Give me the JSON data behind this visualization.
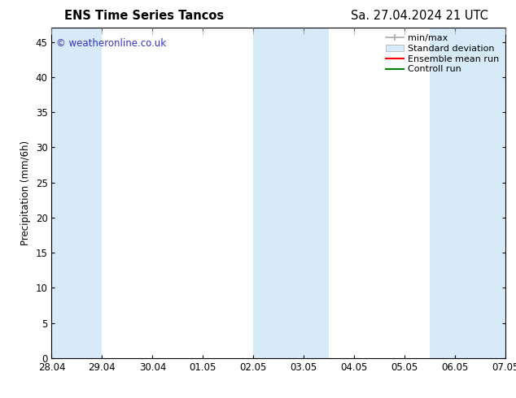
{
  "title_left": "ENS Time Series Tancos",
  "title_right": "Sa. 27.04.2024 21 UTC",
  "ylabel": "Precipitation (mm/6h)",
  "xlabel_ticks": [
    "28.04",
    "29.04",
    "30.04",
    "01.05",
    "02.05",
    "03.05",
    "04.05",
    "05.05",
    "06.05",
    "07.05"
  ],
  "xlim": [
    0,
    9
  ],
  "ylim": [
    0,
    47
  ],
  "yticks": [
    0,
    5,
    10,
    15,
    20,
    25,
    30,
    35,
    40,
    45
  ],
  "background_color": "#ffffff",
  "plot_bg_color": "#ffffff",
  "watermark": "© weatheronline.co.uk",
  "watermark_color": "#3333cc",
  "shaded_regions": [
    {
      "x_start": 0.0,
      "x_end": 1.0,
      "color": "#d6eaf8"
    },
    {
      "x_start": 4.0,
      "x_end": 5.5,
      "color": "#d6eaf8"
    },
    {
      "x_start": 7.5,
      "x_end": 9.0,
      "color": "#d6eaf8"
    }
  ],
  "minmax_color": "#aaaaaa",
  "stddev_color": "#d6eaf8",
  "ensemble_color": "#ff0000",
  "control_color": "#008000",
  "font_size": 8.5,
  "title_fontsize": 10.5,
  "legend_fontsize": 8
}
